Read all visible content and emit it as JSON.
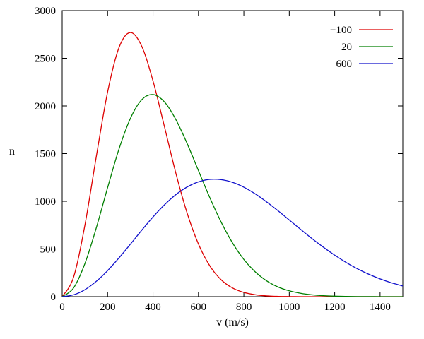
{
  "chart_data": {
    "type": "line",
    "title": "",
    "xlabel": "v (m/s)",
    "ylabel": "n",
    "xlim": [
      0,
      1500
    ],
    "ylim": [
      0,
      3000
    ],
    "xticks": [
      0,
      200,
      400,
      600,
      800,
      1000,
      1200,
      1400
    ],
    "yticks": [
      0,
      500,
      1000,
      1500,
      2000,
      2500,
      3000
    ],
    "grid": false,
    "legend_position": "top-right",
    "background_color": "#ffffff",
    "axis_color": "#000000",
    "x": [
      0,
      50,
      100,
      150,
      200,
      250,
      300,
      350,
      400,
      450,
      500,
      550,
      600,
      650,
      700,
      750,
      800,
      850,
      900,
      950,
      1000,
      1050,
      1100,
      1150,
      1200,
      1250,
      1300,
      1350,
      1400,
      1450,
      1500
    ],
    "series": [
      {
        "name": "−100",
        "color": "#dd0000",
        "values": [
          0,
          203,
          749,
          1466,
          2146,
          2611,
          2770,
          2628,
          2262,
          1786,
          1300,
          878,
          552,
          323,
          177,
          91,
          44,
          20,
          8,
          3,
          1,
          0,
          0,
          0,
          0,
          0,
          0,
          0,
          0,
          0,
          0
        ]
      },
      {
        "name": "20",
        "color": "#007f00",
        "values": [
          0,
          91,
          346,
          720,
          1143,
          1547,
          1867,
          2064,
          2119,
          2043,
          1860,
          1607,
          1322,
          1039,
          782,
          564,
          390,
          260,
          166,
          102,
          61,
          35,
          19,
          10,
          5,
          3,
          1,
          1,
          0,
          0,
          0
        ]
      },
      {
        "name": "600",
        "color": "#1111cc",
        "values": [
          0,
          19,
          73,
          160,
          273,
          406,
          549,
          696,
          836,
          962,
          1069,
          1150,
          1204,
          1230,
          1227,
          1199,
          1148,
          1078,
          994,
          902,
          804,
          706,
          609,
          519,
          435,
          359,
          292,
          235,
          186,
          145,
          112
        ]
      }
    ]
  }
}
